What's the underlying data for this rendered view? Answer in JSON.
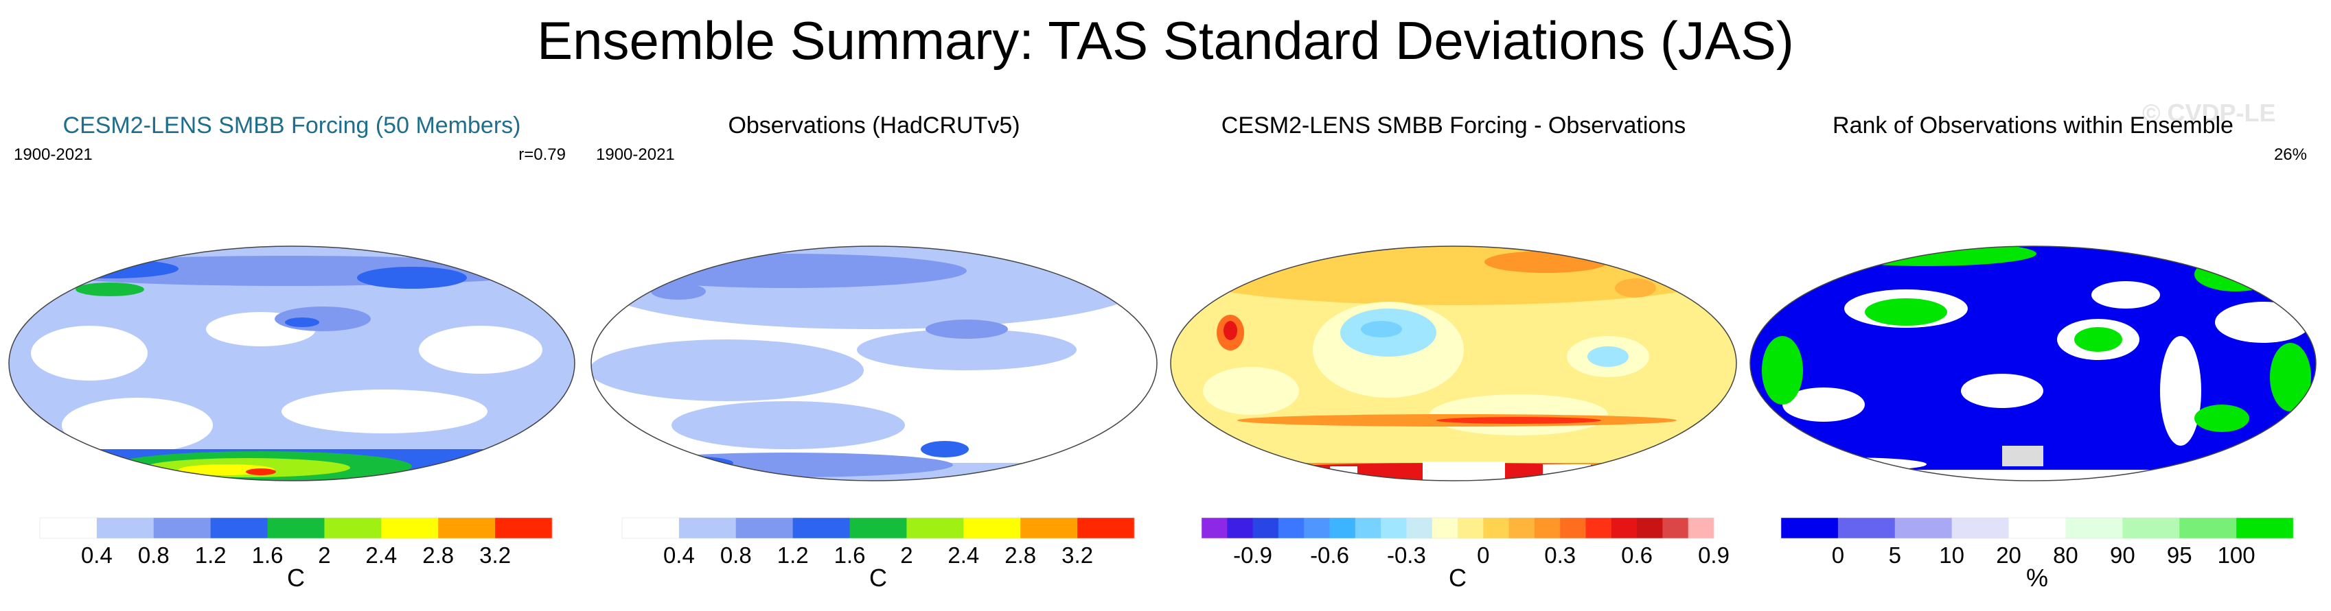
{
  "title": "Ensemble Summary: TAS Standard Deviations (JAS)",
  "watermark": "© CVDP-LE",
  "chart_data": [
    {
      "type": "heatmap",
      "title": "CESM2-LENS SMBB Forcing (50 Members)",
      "title_color": "#1f6e8c",
      "left_label": "1900-2021",
      "right_label": "r=0.79",
      "units": "C",
      "colorbar": {
        "colors": [
          "#ffffff",
          "#b4c8fa",
          "#7f98f0",
          "#2d64f0",
          "#14be3c",
          "#a0f014",
          "#ffff00",
          "#ffa000",
          "#ff2800"
        ],
        "ticks": [
          "0.4",
          "0.8",
          "1.2",
          "1.6",
          "2",
          "2.4",
          "2.8",
          "3.2"
        ]
      }
    },
    {
      "type": "heatmap",
      "title": "Observations (HadCRUTv5)",
      "title_color": "#000000",
      "left_label": "1900-2021",
      "right_label": "",
      "units": "C",
      "colorbar": {
        "colors": [
          "#ffffff",
          "#b4c8fa",
          "#7f98f0",
          "#2d64f0",
          "#14be3c",
          "#a0f014",
          "#ffff00",
          "#ffa000",
          "#ff2800"
        ],
        "ticks": [
          "0.4",
          "0.8",
          "1.2",
          "1.6",
          "2",
          "2.4",
          "2.8",
          "3.2"
        ]
      }
    },
    {
      "type": "heatmap",
      "title": "CESM2-LENS SMBB Forcing - Observations",
      "title_color": "#000000",
      "left_label": "",
      "right_label": "",
      "units": "C",
      "colorbar": {
        "colors": [
          "#8c28e6",
          "#3c1ee6",
          "#2846e6",
          "#3c78ff",
          "#5096ff",
          "#3cb4ff",
          "#78d2ff",
          "#a0e6ff",
          "#c8ebf5",
          "#ffffc8",
          "#fff08c",
          "#ffd250",
          "#ffb43c",
          "#ff9628",
          "#ff6e1e",
          "#ff3214",
          "#e61414",
          "#c81414",
          "#dc4646",
          "#ffb4b4"
        ],
        "ticks": [
          "-0.9",
          "-0.6",
          "-0.3",
          "0",
          "0.3",
          "0.6",
          "0.9"
        ],
        "tick_boundaries": [
          2,
          5,
          8,
          11,
          14,
          17,
          20
        ]
      }
    },
    {
      "type": "heatmap",
      "title": "Rank of Observations within Ensemble",
      "title_color": "#000000",
      "left_label": "",
      "right_label": "26%",
      "units": "%",
      "colorbar": {
        "colors": [
          "#0000f0",
          "#6464f0",
          "#a8a8f5",
          "#e1e1fa",
          "#ffffff",
          "#e1ffe1",
          "#b4fab4",
          "#78f078",
          "#00e600"
        ],
        "ticks": [
          "0",
          "5",
          "10",
          "20",
          "80",
          "90",
          "95",
          "100"
        ]
      }
    }
  ]
}
